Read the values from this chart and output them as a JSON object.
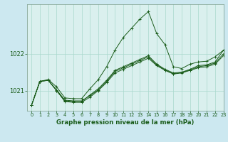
{
  "background_color": "#cce8f0",
  "plot_bg_color": "#daf0ee",
  "line_color": "#1a5c1a",
  "grid_color": "#a8d8cc",
  "xlabel": "Graphe pression niveau de la mer (hPa)",
  "xlim": [
    -0.5,
    23
  ],
  "ylim": [
    1020.45,
    1023.35
  ],
  "yticks": [
    1021,
    1022
  ],
  "xticks": [
    0,
    1,
    2,
    3,
    4,
    5,
    6,
    7,
    8,
    9,
    10,
    11,
    12,
    13,
    14,
    15,
    16,
    17,
    18,
    19,
    20,
    21,
    22,
    23
  ],
  "series": [
    [
      1020.6,
      1021.25,
      1021.3,
      1021.1,
      1020.8,
      1020.78,
      1020.78,
      1021.05,
      1021.3,
      1021.65,
      1022.1,
      1022.45,
      1022.7,
      1022.95,
      1023.15,
      1022.55,
      1022.25,
      1021.65,
      1021.6,
      1021.72,
      1021.78,
      1021.8,
      1021.92,
      1022.1
    ],
    [
      1020.6,
      1021.25,
      1021.28,
      1021.0,
      1020.72,
      1020.7,
      1020.7,
      1020.88,
      1021.05,
      1021.28,
      1021.55,
      1021.65,
      1021.75,
      1021.85,
      1021.95,
      1021.72,
      1021.58,
      1021.48,
      1021.5,
      1021.58,
      1021.68,
      1021.7,
      1021.78,
      1022.1
    ],
    [
      1020.6,
      1021.25,
      1021.28,
      1021.0,
      1020.7,
      1020.68,
      1020.68,
      1020.82,
      1021.0,
      1021.22,
      1021.48,
      1021.58,
      1021.68,
      1021.78,
      1021.88,
      1021.68,
      1021.55,
      1021.45,
      1021.48,
      1021.55,
      1021.62,
      1021.65,
      1021.72,
      1021.95
    ],
    [
      1020.6,
      1021.25,
      1021.28,
      1021.02,
      1020.74,
      1020.72,
      1020.72,
      1020.86,
      1021.02,
      1021.25,
      1021.52,
      1021.62,
      1021.72,
      1021.82,
      1021.92,
      1021.7,
      1021.56,
      1021.46,
      1021.49,
      1021.56,
      1021.65,
      1021.68,
      1021.75,
      1022.0
    ]
  ]
}
